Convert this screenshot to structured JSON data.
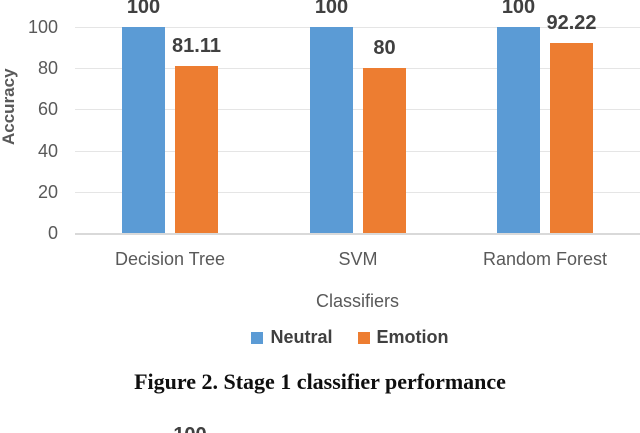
{
  "figure": {
    "caption": "Figure 2. Stage 1 classifier performance",
    "next_figure_fragment": "100"
  },
  "chart_data": {
    "type": "bar",
    "title": "",
    "categories": [
      "Decision Tree",
      "SVM",
      "Random Forest"
    ],
    "series": [
      {
        "name": "Neutral",
        "color": "#5B9BD5",
        "values": [
          100,
          100,
          100
        ],
        "labels": [
          "100",
          "100",
          "100"
        ]
      },
      {
        "name": "Emotion",
        "color": "#ED7D31",
        "values": [
          81.11,
          80,
          92.22
        ],
        "labels": [
          "81.11",
          "80",
          "92.22"
        ]
      }
    ],
    "xlabel": "Classifiers",
    "ylabel": "Accuracy",
    "yticks": [
      0,
      20,
      40,
      60,
      80,
      100
    ],
    "ylim": [
      0,
      100
    ],
    "grid": true,
    "data_labels": true,
    "legend_position": "bottom"
  }
}
